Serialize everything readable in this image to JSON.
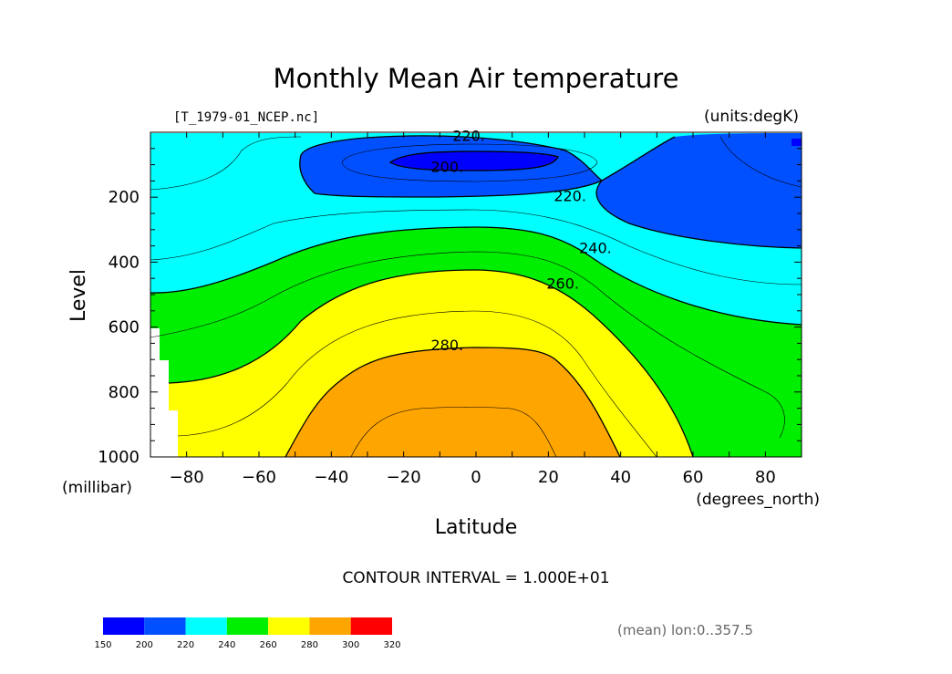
{
  "chart_data": {
    "type": "contour",
    "title": "Monthly Mean Air temperature",
    "file_label": "[T_1979-01_NCEP.nc]",
    "units_label": "(units:degK)",
    "xlabel": "Latitude",
    "x_units": "(degrees_north)",
    "ylabel": "Level",
    "y_units": "(millibar)",
    "xlim": [
      -90,
      90
    ],
    "ylim": [
      0,
      1000
    ],
    "y_inverted": true,
    "x_ticks": [
      -80,
      -60,
      -40,
      -20,
      0,
      20,
      40,
      60,
      80
    ],
    "x_tick_labels": [
      "−80",
      "−60",
      "−40",
      "−20",
      "0",
      "20",
      "40",
      "60",
      "80"
    ],
    "y_ticks": [
      200,
      400,
      600,
      800,
      1000
    ],
    "y_tick_labels": [
      "200",
      "400",
      "600",
      "800",
      "1000"
    ],
    "contour_interval_text": "CONTOUR INTERVAL = 1.000E+01",
    "mean_note": "(mean) lon:0..357.5",
    "colorbar": {
      "levels": [
        150,
        200,
        220,
        240,
        260,
        280,
        300,
        320
      ],
      "labels": [
        "150",
        "200",
        "220",
        "240",
        "260",
        "280",
        "300",
        "320"
      ],
      "colors": [
        "#0000ff",
        "#0050ff",
        "#00ffff",
        "#00ee00",
        "#ffff00",
        "#ffa500",
        "#ff0000"
      ]
    },
    "fill_bands": [
      {
        "range": [
          190,
          200
        ],
        "color": "#0000ff"
      },
      {
        "range": [
          200,
          220
        ],
        "color": "#0050ff"
      },
      {
        "range": [
          220,
          240
        ],
        "color": "#00ffff"
      },
      {
        "range": [
          240,
          260
        ],
        "color": "#00ee00"
      },
      {
        "range": [
          260,
          280
        ],
        "color": "#ffff00"
      },
      {
        "range": [
          280,
          300
        ],
        "color": "#ffa500"
      }
    ],
    "contour_labels": [
      {
        "text": "220.",
        "lat": -2,
        "level": 10
      },
      {
        "text": "200.",
        "lat": -8,
        "level": 105
      },
      {
        "text": "220.",
        "lat": 26,
        "level": 195
      },
      {
        "text": "240.",
        "lat": 33,
        "level": 355
      },
      {
        "text": "260.",
        "lat": 24,
        "level": 465
      },
      {
        "text": "280.",
        "lat": -8,
        "level": 655
      }
    ]
  }
}
